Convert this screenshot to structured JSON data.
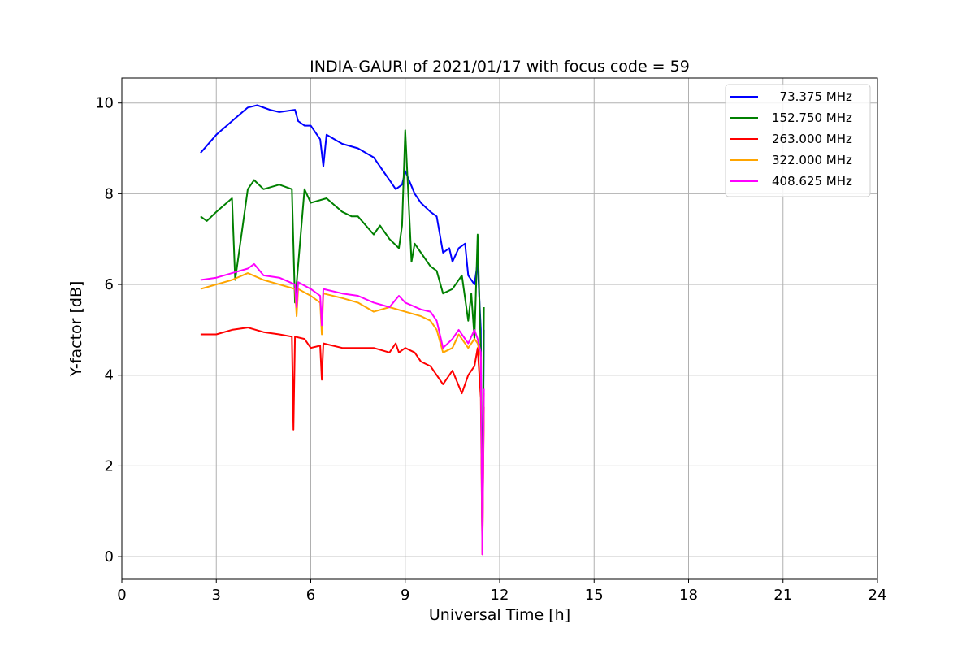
{
  "chart_data": {
    "type": "line",
    "title": "INDIA-GAURI of 2021/01/17 with focus code = 59",
    "xlabel": "Universal Time [h]",
    "ylabel": "Y-factor [dB]",
    "xlim": [
      0,
      24
    ],
    "ylim": [
      -0.5,
      10.55
    ],
    "xticks": [
      0,
      3,
      6,
      9,
      12,
      15,
      18,
      21,
      24
    ],
    "yticks": [
      0,
      2,
      4,
      6,
      8,
      10
    ],
    "grid": true,
    "legend_position": "top-right",
    "series": [
      {
        "name": "  73.375 MHz",
        "color": "#0000ff",
        "x": [
          2.5,
          3.0,
          3.5,
          4.0,
          4.3,
          4.7,
          5.0,
          5.5,
          5.6,
          5.8,
          6.0,
          6.3,
          6.4,
          6.5,
          7.0,
          7.5,
          8.0,
          8.3,
          8.5,
          8.7,
          8.9,
          9.0,
          9.3,
          9.5,
          9.8,
          10.0,
          10.2,
          10.4,
          10.5,
          10.7,
          10.9,
          11.0,
          11.2,
          11.3,
          11.4,
          11.45,
          11.5
        ],
        "y": [
          8.9,
          9.3,
          9.6,
          9.9,
          9.95,
          9.85,
          9.8,
          9.85,
          9.6,
          9.5,
          9.5,
          9.2,
          8.6,
          9.3,
          9.1,
          9.0,
          8.8,
          8.5,
          8.3,
          8.1,
          8.2,
          8.5,
          8.0,
          7.8,
          7.6,
          7.5,
          6.7,
          6.8,
          6.5,
          6.8,
          6.9,
          6.2,
          6.0,
          6.5,
          5.0,
          0.1,
          5.0
        ]
      },
      {
        "name": "152.750 MHz",
        "color": "#008000",
        "x": [
          2.5,
          2.7,
          3.0,
          3.5,
          3.6,
          4.0,
          4.2,
          4.5,
          5.0,
          5.4,
          5.5,
          5.8,
          6.0,
          6.5,
          7.0,
          7.3,
          7.5,
          8.0,
          8.2,
          8.5,
          8.8,
          8.9,
          9.0,
          9.2,
          9.3,
          9.5,
          9.8,
          10.0,
          10.2,
          10.5,
          10.8,
          11.0,
          11.1,
          11.2,
          11.3,
          11.4,
          11.45,
          11.5
        ],
        "y": [
          7.5,
          7.4,
          7.6,
          7.9,
          6.1,
          8.1,
          8.3,
          8.1,
          8.2,
          8.1,
          5.6,
          8.1,
          7.8,
          7.9,
          7.6,
          7.5,
          7.5,
          7.1,
          7.3,
          7.0,
          6.8,
          7.3,
          9.4,
          6.5,
          6.9,
          6.7,
          6.4,
          6.3,
          5.8,
          5.9,
          6.2,
          5.2,
          5.8,
          4.8,
          7.1,
          4.5,
          0.2,
          5.5
        ]
      },
      {
        "name": "263.000 MHz",
        "color": "#ff0000",
        "x": [
          2.5,
          3.0,
          3.5,
          4.0,
          4.5,
          5.0,
          5.4,
          5.45,
          5.5,
          5.8,
          6.0,
          6.3,
          6.35,
          6.4,
          7.0,
          7.5,
          8.0,
          8.5,
          8.7,
          8.8,
          9.0,
          9.3,
          9.5,
          9.8,
          10.0,
          10.2,
          10.5,
          10.8,
          11.0,
          11.2,
          11.3,
          11.4,
          11.45,
          11.5
        ],
        "y": [
          4.9,
          4.9,
          5.0,
          5.05,
          4.95,
          4.9,
          4.85,
          2.8,
          4.85,
          4.8,
          4.6,
          4.65,
          3.9,
          4.7,
          4.6,
          4.6,
          4.6,
          4.5,
          4.7,
          4.5,
          4.6,
          4.5,
          4.3,
          4.2,
          4.0,
          3.8,
          4.1,
          3.6,
          4.0,
          4.2,
          4.6,
          3.5,
          0.05,
          3.3
        ]
      },
      {
        "name": "322.000 MHz",
        "color": "#ffa500",
        "x": [
          2.5,
          3.0,
          3.5,
          4.0,
          4.5,
          5.0,
          5.5,
          5.55,
          5.6,
          6.0,
          6.3,
          6.35,
          6.4,
          7.0,
          7.5,
          8.0,
          8.5,
          9.0,
          9.5,
          9.8,
          10.0,
          10.2,
          10.5,
          10.7,
          11.0,
          11.2,
          11.3,
          11.4,
          11.45,
          11.5
        ],
        "y": [
          5.9,
          6.0,
          6.1,
          6.25,
          6.1,
          6.0,
          5.9,
          5.3,
          5.9,
          5.75,
          5.6,
          4.9,
          5.8,
          5.7,
          5.6,
          5.4,
          5.5,
          5.4,
          5.3,
          5.2,
          5.0,
          4.5,
          4.6,
          4.9,
          4.6,
          4.8,
          4.7,
          4.4,
          0.05,
          3.6
        ]
      },
      {
        "name": "408.625 MHz",
        "color": "#ff00ff",
        "x": [
          2.5,
          3.0,
          3.5,
          4.0,
          4.2,
          4.5,
          5.0,
          5.5,
          5.55,
          5.6,
          6.0,
          6.3,
          6.35,
          6.4,
          7.0,
          7.5,
          8.0,
          8.5,
          8.8,
          9.0,
          9.5,
          9.8,
          10.0,
          10.2,
          10.5,
          10.7,
          11.0,
          11.2,
          11.3,
          11.4,
          11.45,
          11.5
        ],
        "y": [
          6.1,
          6.15,
          6.25,
          6.35,
          6.45,
          6.2,
          6.15,
          6.0,
          5.5,
          6.05,
          5.9,
          5.75,
          5.1,
          5.9,
          5.8,
          5.75,
          5.6,
          5.5,
          5.75,
          5.6,
          5.45,
          5.4,
          5.2,
          4.6,
          4.8,
          5.0,
          4.7,
          5.0,
          4.8,
          4.5,
          0.05,
          3.7
        ]
      }
    ]
  }
}
